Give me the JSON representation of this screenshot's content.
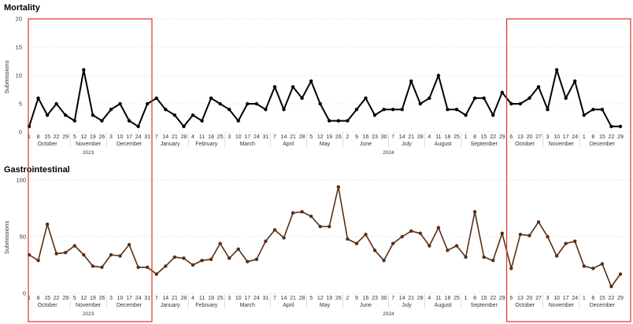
{
  "colors": {
    "mortality": "#000000",
    "gastro": "#5a2e12",
    "highlight": "#e03030",
    "grid": "#e2e2e2",
    "divider": "#cfcfcf"
  },
  "axis": {
    "weeks": [
      {
        "day": "1",
        "month": "October",
        "year": "2023"
      },
      {
        "day": "8",
        "month": "October",
        "year": "2023"
      },
      {
        "day": "15",
        "month": "October",
        "year": "2023"
      },
      {
        "day": "22",
        "month": "October",
        "year": "2023"
      },
      {
        "day": "29",
        "month": "October",
        "year": "2023"
      },
      {
        "day": "5",
        "month": "November",
        "year": "2023"
      },
      {
        "day": "12",
        "month": "November",
        "year": "2023"
      },
      {
        "day": "19",
        "month": "November",
        "year": "2023"
      },
      {
        "day": "26",
        "month": "November",
        "year": "2023"
      },
      {
        "day": "3",
        "month": "December",
        "year": "2023"
      },
      {
        "day": "10",
        "month": "December",
        "year": "2023"
      },
      {
        "day": "17",
        "month": "December",
        "year": "2023"
      },
      {
        "day": "24",
        "month": "December",
        "year": "2023"
      },
      {
        "day": "31",
        "month": "December",
        "year": "2023"
      },
      {
        "day": "7",
        "month": "January",
        "year": "2024"
      },
      {
        "day": "14",
        "month": "January",
        "year": "2024"
      },
      {
        "day": "21",
        "month": "January",
        "year": "2024"
      },
      {
        "day": "28",
        "month": "January",
        "year": "2024"
      },
      {
        "day": "4",
        "month": "February",
        "year": "2024"
      },
      {
        "day": "11",
        "month": "February",
        "year": "2024"
      },
      {
        "day": "18",
        "month": "February",
        "year": "2024"
      },
      {
        "day": "25",
        "month": "February",
        "year": "2024"
      },
      {
        "day": "3",
        "month": "March",
        "year": "2024"
      },
      {
        "day": "10",
        "month": "March",
        "year": "2024"
      },
      {
        "day": "17",
        "month": "March",
        "year": "2024"
      },
      {
        "day": "24",
        "month": "March",
        "year": "2024"
      },
      {
        "day": "31",
        "month": "March",
        "year": "2024"
      },
      {
        "day": "7",
        "month": "April",
        "year": "2024"
      },
      {
        "day": "14",
        "month": "April",
        "year": "2024"
      },
      {
        "day": "21",
        "month": "April",
        "year": "2024"
      },
      {
        "day": "28",
        "month": "April",
        "year": "2024"
      },
      {
        "day": "5",
        "month": "May",
        "year": "2024"
      },
      {
        "day": "12",
        "month": "May",
        "year": "2024"
      },
      {
        "day": "19",
        "month": "May",
        "year": "2024"
      },
      {
        "day": "26",
        "month": "May",
        "year": "2024"
      },
      {
        "day": "2",
        "month": "June",
        "year": "2024"
      },
      {
        "day": "9",
        "month": "June",
        "year": "2024"
      },
      {
        "day": "16",
        "month": "June",
        "year": "2024"
      },
      {
        "day": "23",
        "month": "June",
        "year": "2024"
      },
      {
        "day": "30",
        "month": "June",
        "year": "2024"
      },
      {
        "day": "7",
        "month": "July",
        "year": "2024"
      },
      {
        "day": "14",
        "month": "July",
        "year": "2024"
      },
      {
        "day": "21",
        "month": "July",
        "year": "2024"
      },
      {
        "day": "28",
        "month": "July",
        "year": "2024"
      },
      {
        "day": "4",
        "month": "August",
        "year": "2024"
      },
      {
        "day": "11",
        "month": "August",
        "year": "2024"
      },
      {
        "day": "18",
        "month": "August",
        "year": "2024"
      },
      {
        "day": "25",
        "month": "August",
        "year": "2024"
      },
      {
        "day": "1",
        "month": "September",
        "year": "2024"
      },
      {
        "day": "8",
        "month": "September",
        "year": "2024"
      },
      {
        "day": "15",
        "month": "September",
        "year": "2024"
      },
      {
        "day": "22",
        "month": "September",
        "year": "2024"
      },
      {
        "day": "29",
        "month": "September",
        "year": "2024"
      },
      {
        "day": "6",
        "month": "October",
        "year": "2024"
      },
      {
        "day": "13",
        "month": "October",
        "year": "2024"
      },
      {
        "day": "20",
        "month": "October",
        "year": "2024"
      },
      {
        "day": "27",
        "month": "October",
        "year": "2024"
      },
      {
        "day": "3",
        "month": "November",
        "year": "2024"
      },
      {
        "day": "10",
        "month": "November",
        "year": "2024"
      },
      {
        "day": "17",
        "month": "November",
        "year": "2024"
      },
      {
        "day": "24",
        "month": "November",
        "year": "2024"
      },
      {
        "day": "1",
        "month": "December",
        "year": "2024"
      },
      {
        "day": "8",
        "month": "December",
        "year": "2024"
      },
      {
        "day": "15",
        "month": "December",
        "year": "2024"
      },
      {
        "day": "22",
        "month": "December",
        "year": "2024"
      },
      {
        "day": "29",
        "month": "December",
        "year": "2024"
      }
    ],
    "top_labels": [
      "1",
      "8",
      "15",
      "22",
      "29",
      "5",
      "12",
      "19",
      "26",
      "3",
      "10",
      "17",
      "24",
      "31",
      "7",
      "14",
      "21",
      "28",
      "4",
      "11",
      "18",
      "25",
      "3",
      "10",
      "17",
      "24",
      "31",
      "7",
      "14",
      "21",
      "28",
      "5",
      "12",
      "19",
      "26",
      "2",
      "9",
      "16",
      "23",
      "30",
      "7",
      "14",
      "21",
      "28",
      "4",
      "11",
      "18",
      "25",
      "1",
      "8",
      "15",
      "22",
      "29",
      "6",
      "13",
      "20",
      "27",
      "3",
      "10",
      "17",
      "24",
      "1",
      "8",
      "15",
      "22",
      "29"
    ],
    "bottom_labels": [
      "1",
      "8",
      "15",
      "22",
      "29",
      "5",
      "12",
      "19",
      "26",
      "3",
      "10",
      "17",
      "24",
      "31",
      "7",
      "14",
      "21",
      "28",
      "4",
      "11",
      "18",
      "25",
      "3",
      "10",
      "17",
      "24",
      "31",
      "7",
      "14",
      "21",
      "28",
      "5",
      "12",
      "19",
      "26",
      "2",
      "9",
      "16",
      "23",
      "30",
      "7",
      "14",
      "21",
      "28",
      "4",
      "11",
      "18",
      "25",
      "1",
      "8",
      "15",
      "22",
      "29",
      "6",
      "13",
      "20",
      "27",
      "3",
      "10",
      "17",
      "24",
      "1",
      "8",
      "15",
      "22",
      "29"
    ]
  },
  "chart_data": [
    {
      "type": "line",
      "title": "Mortality",
      "ylabel": "Submissions",
      "xlabel": "",
      "ylim": [
        0,
        20
      ],
      "yticks": [
        "0",
        "5",
        "10",
        "15",
        "20"
      ],
      "grid": true,
      "highlight_boxes": [
        [
          "1",
          "31"
        ],
        [
          "6",
          "29"
        ]
      ],
      "series": [
        {
          "values": [
            1,
            6,
            3,
            5,
            3,
            2,
            11,
            3,
            2,
            4,
            5,
            2,
            1,
            5,
            6,
            4,
            3,
            1,
            3,
            2,
            6,
            5,
            4,
            2,
            5,
            5,
            4,
            8,
            4,
            8,
            6,
            9,
            5,
            2,
            2,
            2,
            4,
            6,
            3,
            4,
            4,
            4,
            9,
            5,
            6,
            10,
            4,
            4,
            3,
            6,
            6,
            3,
            7,
            5,
            5,
            6,
            8,
            4,
            11,
            6,
            9,
            3,
            4,
            4,
            1,
            1
          ]
        }
      ]
    },
    {
      "type": "line",
      "title": "Gastrointestinal",
      "ylabel": "Submissions",
      "xlabel": "",
      "ylim": [
        0,
        100
      ],
      "yticks": [
        "0",
        "50",
        "100"
      ],
      "grid": true,
      "highlight_boxes": [
        [
          "1",
          "31"
        ],
        [
          "6",
          "29"
        ]
      ],
      "series": [
        {
          "values": [
            34,
            29,
            61,
            35,
            36,
            42,
            34,
            24,
            23,
            34,
            33,
            43,
            23,
            23,
            17,
            24,
            32,
            31,
            25,
            29,
            30,
            44,
            31,
            39,
            28,
            30,
            46,
            56,
            49,
            71,
            72,
            68,
            59,
            59,
            94,
            48,
            44,
            52,
            38,
            29,
            44,
            50,
            55,
            53,
            42,
            58,
            38,
            42,
            32,
            72,
            32,
            29,
            53,
            22,
            52,
            51,
            63,
            50,
            33,
            44,
            46,
            24,
            22,
            26,
            6,
            17
          ]
        }
      ]
    }
  ]
}
